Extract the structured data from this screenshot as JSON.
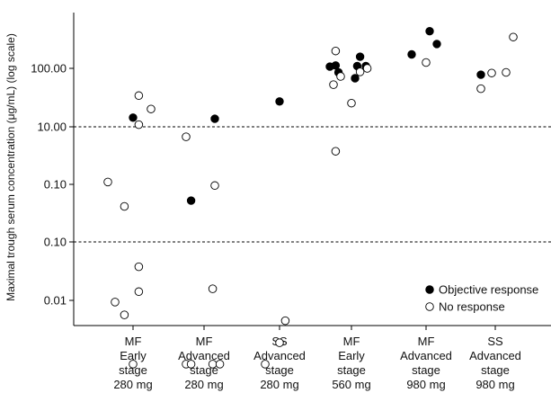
{
  "chart_data": {
    "type": "scatter",
    "ylabel": "Maximal trough serum concentration (μg/mL) (log scale)",
    "y_scale": "log",
    "grid": false,
    "y_ticks": [
      {
        "label": "100.00",
        "dashed": false
      },
      {
        "label": "10.00",
        "dashed": true
      },
      {
        "label": "0.10",
        "dashed": false
      },
      {
        "label": "0.10",
        "dashed": true
      },
      {
        "label": "0.01",
        "dashed": false
      }
    ],
    "categories": [
      [
        "MF",
        "Early",
        "stage",
        "280 mg"
      ],
      [
        "MF",
        "Advanced",
        "stage",
        "280 mg"
      ],
      [
        "SS",
        "Advanced",
        "stage",
        "280 mg"
      ],
      [
        "MF",
        "Early",
        "stage",
        "560 mg"
      ],
      [
        "MF",
        "Advanced",
        "stage",
        "980 mg"
      ],
      [
        "SS",
        "Advanced",
        "stage",
        "980 mg"
      ]
    ],
    "series": [
      {
        "name": "Objective response",
        "fill": "#000000",
        "points": [
          {
            "c": 0,
            "dx": 0.0,
            "y": 1.15
          },
          {
            "c": 1,
            "dx": -0.18,
            "y": -0.28
          },
          {
            "c": 1,
            "dx": 0.15,
            "y": 1.13
          },
          {
            "c": 2,
            "dx": 0.0,
            "y": 1.43
          },
          {
            "c": 3,
            "dx": -0.3,
            "y": 2.03
          },
          {
            "c": 3,
            "dx": -0.22,
            "y": 2.05
          },
          {
            "c": 3,
            "dx": -0.18,
            "y": 1.93
          },
          {
            "c": 3,
            "dx": 0.05,
            "y": 1.83
          },
          {
            "c": 3,
            "dx": 0.08,
            "y": 2.04
          },
          {
            "c": 3,
            "dx": 0.12,
            "y": 2.2
          },
          {
            "c": 3,
            "dx": 0.2,
            "y": 2.04
          },
          {
            "c": 4,
            "dx": -0.2,
            "y": 2.24
          },
          {
            "c": 4,
            "dx": 0.05,
            "y": 2.64
          },
          {
            "c": 4,
            "dx": 0.15,
            "y": 2.42
          },
          {
            "c": 5,
            "dx": -0.2,
            "y": 1.89
          }
        ]
      },
      {
        "name": "No response",
        "fill": "#ffffff",
        "points": [
          {
            "c": 0,
            "dx": -0.35,
            "y": 0.04
          },
          {
            "c": 0,
            "dx": -0.12,
            "y": -0.38
          },
          {
            "c": 0,
            "dx": 0.08,
            "y": -1.42
          },
          {
            "c": 0,
            "dx": -0.25,
            "y": -2.03
          },
          {
            "c": 0,
            "dx": -0.12,
            "y": -2.25
          },
          {
            "c": 0,
            "dx": 0.08,
            "y": -1.85
          },
          {
            "c": 0,
            "dx": 0.0,
            "y": -3.1
          },
          {
            "c": 0,
            "dx": 0.08,
            "y": 1.53
          },
          {
            "c": 0,
            "dx": 0.25,
            "y": 1.3
          },
          {
            "c": 0,
            "dx": 0.08,
            "y": 1.03
          },
          {
            "c": 1,
            "dx": -0.25,
            "y": 0.82
          },
          {
            "c": 1,
            "dx": 0.15,
            "y": -0.02
          },
          {
            "c": 1,
            "dx": 0.12,
            "y": -1.8
          },
          {
            "c": 1,
            "dx": -0.25,
            "y": -3.1
          },
          {
            "c": 1,
            "dx": -0.18,
            "y": -3.1
          },
          {
            "c": 1,
            "dx": 0.12,
            "y": -3.1
          },
          {
            "c": 1,
            "dx": 0.22,
            "y": -3.1
          },
          {
            "c": 2,
            "dx": -0.2,
            "y": -3.1
          },
          {
            "c": 2,
            "dx": 0.0,
            "y": -2.73
          },
          {
            "c": 2,
            "dx": 0.08,
            "y": -2.35
          },
          {
            "c": 3,
            "dx": -0.22,
            "y": 2.3
          },
          {
            "c": 3,
            "dx": -0.15,
            "y": 1.86
          },
          {
            "c": 3,
            "dx": -0.25,
            "y": 1.72
          },
          {
            "c": 3,
            "dx": 0.0,
            "y": 1.4
          },
          {
            "c": 3,
            "dx": 0.12,
            "y": 1.94
          },
          {
            "c": 3,
            "dx": 0.22,
            "y": 2.0
          },
          {
            "c": 3,
            "dx": -0.22,
            "y": 0.57
          },
          {
            "c": 4,
            "dx": 0.0,
            "y": 2.1
          },
          {
            "c": 5,
            "dx": -0.2,
            "y": 1.65
          },
          {
            "c": 5,
            "dx": -0.05,
            "y": 1.92
          },
          {
            "c": 5,
            "dx": 0.15,
            "y": 1.93
          },
          {
            "c": 5,
            "dx": 0.25,
            "y": 2.54
          }
        ]
      }
    ],
    "legend": {
      "position": "bottom-right",
      "items": [
        {
          "label": "Objective response",
          "fill": "#000000"
        },
        {
          "label": "No response",
          "fill": "#ffffff"
        }
      ]
    }
  }
}
